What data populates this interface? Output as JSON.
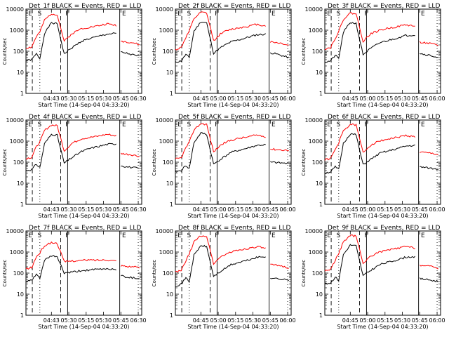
{
  "figure": {
    "x_title": "Start Time (14-Sep-04 04:33:20)",
    "y_title": "Counts/sec",
    "y_ticks": [
      "1",
      "10",
      "100",
      "1000",
      "10000"
    ],
    "x_ticks_a": [
      "04:45",
      "05:00",
      "05:15",
      "05:30",
      "05:45",
      "06:00"
    ],
    "x_ticks_b": [
      "04:43",
      "05:30",
      "05:15",
      "05:30",
      "05:45",
      "06:30"
    ],
    "colors": {
      "events": "#000000",
      "lld": "#ff0000"
    }
  },
  "chart_data": [
    {
      "type": "line",
      "title": "Det_1f BLACK = Events, RED = LLD",
      "xlabel": "Start Time (14-Sep-04 04:33:20)",
      "ylabel": "Counts/sec",
      "yscale": "log",
      "ylim": [
        1,
        10000
      ],
      "tick_style": "b",
      "markers": [
        "E",
        "S",
        "F",
        "E"
      ],
      "series": [
        {
          "name": "Events",
          "color": "#000000",
          "x": [
            0,
            0.05,
            0.09,
            0.12,
            0.16,
            0.22,
            0.27,
            0.33,
            0.4,
            0.48,
            0.55,
            0.62,
            0.7,
            0.78,
            0.81,
            0.82,
            0.87,
            0.93,
            0.98
          ],
          "y": [
            35,
            40,
            75,
            45,
            700,
            2200,
            2000,
            75,
            150,
            300,
            400,
            500,
            650,
            700,
            null,
            90,
            80,
            65,
            55
          ]
        },
        {
          "name": "LLD",
          "color": "#ff0000",
          "x": [
            0,
            0.05,
            0.09,
            0.12,
            0.16,
            0.22,
            0.27,
            0.33,
            0.4,
            0.48,
            0.55,
            0.62,
            0.7,
            0.78,
            0.81,
            0.82,
            0.87,
            0.93,
            0.98
          ],
          "y": [
            140,
            160,
            500,
            800,
            3000,
            6000,
            5500,
            300,
            700,
            1200,
            1400,
            1600,
            2000,
            1700,
            null,
            300,
            280,
            250,
            200
          ]
        }
      ]
    },
    {
      "type": "line",
      "title": "Det_2f BLACK = Events, RED = LLD",
      "xlabel": "Start Time (14-Sep-04 04:33:20)",
      "ylabel": "Counts/sec",
      "yscale": "log",
      "ylim": [
        1,
        10000
      ],
      "tick_style": "a",
      "markers": [
        "E",
        "S",
        "F",
        "E"
      ],
      "series": [
        {
          "name": "Events",
          "color": "#000000",
          "x": [
            0,
            0.05,
            0.09,
            0.12,
            0.16,
            0.22,
            0.27,
            0.33,
            0.4,
            0.48,
            0.55,
            0.62,
            0.7,
            0.78,
            0.81,
            0.82,
            0.87,
            0.93,
            0.98
          ],
          "y": [
            30,
            35,
            70,
            50,
            900,
            2500,
            2200,
            80,
            160,
            280,
            350,
            450,
            600,
            650,
            null,
            85,
            75,
            60,
            50
          ]
        },
        {
          "name": "LLD",
          "color": "#ff0000",
          "x": [
            0,
            0.05,
            0.09,
            0.12,
            0.16,
            0.22,
            0.27,
            0.33,
            0.4,
            0.48,
            0.55,
            0.62,
            0.7,
            0.78,
            0.81,
            0.82,
            0.87,
            0.93,
            0.98
          ],
          "y": [
            120,
            150,
            450,
            900,
            3500,
            7000,
            6500,
            320,
            750,
            1100,
            1300,
            1500,
            1900,
            1600,
            null,
            280,
            260,
            230,
            190
          ]
        }
      ]
    },
    {
      "type": "line",
      "title": "Det_3f BLACK = Events, RED = LLD",
      "xlabel": "Start Time (14-Sep-04 04:33:20)",
      "ylabel": "Counts/sec",
      "yscale": "log",
      "ylim": [
        1,
        10000
      ],
      "tick_style": "a",
      "markers": [
        "E",
        "S",
        "F",
        "E"
      ],
      "series": [
        {
          "name": "Events",
          "color": "#000000",
          "x": [
            0,
            0.05,
            0.09,
            0.12,
            0.16,
            0.22,
            0.27,
            0.33,
            0.4,
            0.48,
            0.55,
            0.62,
            0.7,
            0.78,
            0.81,
            0.82,
            0.87,
            0.93,
            0.98
          ],
          "y": [
            30,
            35,
            65,
            45,
            800,
            2300,
            2100,
            70,
            140,
            260,
            330,
            420,
            560,
            600,
            null,
            80,
            70,
            60,
            50
          ]
        },
        {
          "name": "LLD",
          "color": "#ff0000",
          "x": [
            0,
            0.05,
            0.09,
            0.12,
            0.16,
            0.22,
            0.27,
            0.33,
            0.4,
            0.48,
            0.55,
            0.62,
            0.7,
            0.78,
            0.81,
            0.82,
            0.87,
            0.93,
            0.98
          ],
          "y": [
            130,
            150,
            420,
            850,
            3300,
            6500,
            6000,
            300,
            700,
            1000,
            1250,
            1450,
            1800,
            1550,
            null,
            270,
            250,
            220,
            180
          ]
        }
      ]
    },
    {
      "type": "line",
      "title": "Det_4f BLACK = Events, RED = LLD",
      "xlabel": "Start Time (14-Sep-04 04:33:20)",
      "ylabel": "Counts/sec",
      "yscale": "log",
      "ylim": [
        1,
        10000
      ],
      "tick_style": "b",
      "markers": [
        "E",
        "S",
        "F",
        "E"
      ],
      "series": [
        {
          "name": "Events",
          "color": "#000000",
          "x": [
            0,
            0.05,
            0.09,
            0.12,
            0.16,
            0.22,
            0.27,
            0.33,
            0.4,
            0.48,
            0.55,
            0.62,
            0.7,
            0.78,
            0.81,
            0.82,
            0.87,
            0.93,
            0.98
          ],
          "y": [
            40,
            45,
            80,
            55,
            750,
            2100,
            1900,
            90,
            170,
            320,
            450,
            550,
            700,
            750,
            null,
            70,
            60,
            55,
            50
          ]
        },
        {
          "name": "LLD",
          "color": "#ff0000",
          "x": [
            0,
            0.05,
            0.09,
            0.12,
            0.16,
            0.22,
            0.27,
            0.33,
            0.4,
            0.48,
            0.55,
            0.62,
            0.7,
            0.78,
            0.81,
            0.82,
            0.87,
            0.93,
            0.98
          ],
          "y": [
            150,
            170,
            550,
            900,
            3200,
            5800,
            5400,
            350,
            800,
            1300,
            1500,
            1700,
            2100,
            1800,
            null,
            260,
            240,
            220,
            190
          ]
        }
      ]
    },
    {
      "type": "line",
      "title": "Det_5f BLACK = Events, RED = LLD",
      "xlabel": "Start Time (14-Sep-04 04:33:20)",
      "ylabel": "Counts/sec",
      "yscale": "log",
      "ylim": [
        1,
        10000
      ],
      "tick_style": "a",
      "markers": [
        "E",
        "S",
        "F",
        "E"
      ],
      "series": [
        {
          "name": "Events",
          "color": "#000000",
          "x": [
            0,
            0.05,
            0.09,
            0.12,
            0.16,
            0.22,
            0.27,
            0.33,
            0.4,
            0.48,
            0.55,
            0.62,
            0.7,
            0.78,
            0.81,
            0.82,
            0.87,
            0.93,
            0.98
          ],
          "y": [
            35,
            40,
            70,
            50,
            850,
            2400,
            2100,
            80,
            150,
            290,
            370,
            460,
            620,
            670,
            null,
            100,
            95,
            90,
            85
          ]
        },
        {
          "name": "LLD",
          "color": "#ff0000",
          "x": [
            0,
            0.05,
            0.09,
            0.12,
            0.16,
            0.22,
            0.27,
            0.33,
            0.4,
            0.48,
            0.55,
            0.62,
            0.7,
            0.78,
            0.81,
            0.82,
            0.87,
            0.93,
            0.98
          ],
          "y": [
            140,
            160,
            480,
            880,
            3400,
            6800,
            6200,
            310,
            720,
            1100,
            1350,
            1550,
            1950,
            1650,
            null,
            420,
            400,
            380,
            360
          ]
        }
      ]
    },
    {
      "type": "line",
      "title": "Det_6f BLACK = Events, RED = LLD",
      "xlabel": "Start Time (14-Sep-04 04:33:20)",
      "ylabel": "Counts/sec",
      "yscale": "log",
      "ylim": [
        1,
        10000
      ],
      "tick_style": "a",
      "markers": [
        "E",
        "S",
        "F",
        "E"
      ],
      "series": [
        {
          "name": "Events",
          "color": "#000000",
          "x": [
            0,
            0.05,
            0.09,
            0.12,
            0.16,
            0.22,
            0.27,
            0.33,
            0.4,
            0.48,
            0.55,
            0.62,
            0.7,
            0.78,
            0.81,
            0.82,
            0.87,
            0.93,
            0.98
          ],
          "y": [
            30,
            35,
            60,
            45,
            780,
            2200,
            2000,
            75,
            140,
            270,
            340,
            430,
            580,
            620,
            null,
            60,
            55,
            50,
            45
          ]
        },
        {
          "name": "LLD",
          "color": "#ff0000",
          "x": [
            0,
            0.05,
            0.09,
            0.12,
            0.16,
            0.22,
            0.27,
            0.33,
            0.4,
            0.48,
            0.55,
            0.62,
            0.7,
            0.78,
            0.81,
            0.82,
            0.87,
            0.93,
            0.98
          ],
          "y": [
            130,
            150,
            400,
            820,
            3100,
            6200,
            5800,
            290,
            680,
            1050,
            1280,
            1480,
            1850,
            1580,
            null,
            300,
            280,
            260,
            230
          ]
        }
      ]
    },
    {
      "type": "line",
      "title": "Det_7f BLACK = Events, RED = LLD",
      "xlabel": "Start Time (14-Sep-04 04:33:20)",
      "ylabel": "Counts/sec",
      "yscale": "log",
      "ylim": [
        1,
        10000
      ],
      "tick_style": "b",
      "markers": [
        "E",
        "S",
        "F",
        "E"
      ],
      "series": [
        {
          "name": "Events",
          "color": "#000000",
          "x": [
            0,
            0.05,
            0.09,
            0.12,
            0.16,
            0.22,
            0.27,
            0.33,
            0.4,
            0.48,
            0.55,
            0.62,
            0.7,
            0.78,
            0.81,
            0.82,
            0.87,
            0.93,
            0.98
          ],
          "y": [
            40,
            45,
            85,
            60,
            400,
            650,
            600,
            100,
            110,
            130,
            140,
            150,
            160,
            150,
            null,
            75,
            65,
            60,
            55
          ]
        },
        {
          "name": "LLD",
          "color": "#ff0000",
          "x": [
            0,
            0.05,
            0.09,
            0.12,
            0.16,
            0.22,
            0.27,
            0.33,
            0.4,
            0.48,
            0.55,
            0.62,
            0.7,
            0.78,
            0.81,
            0.82,
            0.87,
            0.93,
            0.98
          ],
          "y": [
            160,
            180,
            600,
            900,
            2000,
            2800,
            2600,
            350,
            380,
            400,
            420,
            410,
            430,
            380,
            null,
            230,
            210,
            200,
            180
          ]
        }
      ]
    },
    {
      "type": "line",
      "title": "Det_8f BLACK = Events, RED = LLD",
      "xlabel": "Start Time (14-Sep-04 04:33:20)",
      "ylabel": "Counts/sec",
      "yscale": "log",
      "ylim": [
        1,
        10000
      ],
      "tick_style": "a",
      "markers": [
        "E",
        "S",
        "F",
        "E"
      ],
      "series": [
        {
          "name": "Events",
          "color": "#000000",
          "x": [
            0,
            0.05,
            0.09,
            0.12,
            0.16,
            0.22,
            0.27,
            0.33,
            0.4,
            0.48,
            0.55,
            0.62,
            0.7,
            0.78,
            0.81,
            0.82,
            0.87,
            0.93,
            0.98
          ],
          "y": [
            25,
            30,
            60,
            40,
            700,
            2000,
            1800,
            70,
            130,
            250,
            320,
            400,
            550,
            600,
            null,
            60,
            55,
            50,
            45
          ]
        },
        {
          "name": "LLD",
          "color": "#ff0000",
          "x": [
            0,
            0.05,
            0.09,
            0.12,
            0.16,
            0.22,
            0.27,
            0.33,
            0.4,
            0.48,
            0.55,
            0.62,
            0.7,
            0.78,
            0.81,
            0.82,
            0.87,
            0.93,
            0.98
          ],
          "y": [
            110,
            130,
            380,
            800,
            3000,
            6000,
            5600,
            280,
            650,
            1000,
            1250,
            1450,
            1800,
            1500,
            null,
            250,
            230,
            210,
            180
          ]
        }
      ]
    },
    {
      "type": "line",
      "title": "Det_9f BLACK = Events, RED = LLD",
      "xlabel": "Start Time (14-Sep-04 04:33:20)",
      "ylabel": "Counts/sec",
      "yscale": "log",
      "ylim": [
        1,
        10000
      ],
      "tick_style": "a",
      "markers": [
        "E",
        "S",
        "F",
        "E"
      ],
      "series": [
        {
          "name": "Events",
          "color": "#000000",
          "x": [
            0,
            0.05,
            0.09,
            0.12,
            0.16,
            0.22,
            0.27,
            0.33,
            0.4,
            0.48,
            0.55,
            0.62,
            0.7,
            0.78,
            0.81,
            0.82,
            0.87,
            0.93,
            0.98
          ],
          "y": [
            30,
            35,
            65,
            45,
            760,
            2150,
            1950,
            75,
            140,
            260,
            330,
            420,
            570,
            610,
            null,
            55,
            50,
            45,
            40
          ]
        },
        {
          "name": "LLD",
          "color": "#ff0000",
          "x": [
            0,
            0.05,
            0.09,
            0.12,
            0.16,
            0.22,
            0.27,
            0.33,
            0.4,
            0.48,
            0.55,
            0.62,
            0.7,
            0.78,
            0.81,
            0.82,
            0.87,
            0.93,
            0.98
          ],
          "y": [
            130,
            150,
            420,
            820,
            3100,
            6100,
            5700,
            290,
            670,
            1020,
            1260,
            1460,
            1820,
            1540,
            null,
            240,
            220,
            200,
            170
          ]
        }
      ]
    }
  ]
}
